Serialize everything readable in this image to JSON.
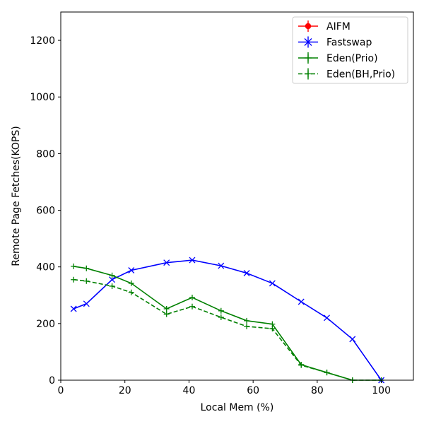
{
  "chart_data": {
    "type": "line",
    "xlabel": "Local Mem (%)",
    "ylabel": "Remote Page Fetches(KOPS)",
    "xlim": [
      0,
      110
    ],
    "ylim": [
      0,
      1300
    ],
    "xticks": [
      "0",
      "20",
      "40",
      "60",
      "80",
      "100"
    ],
    "yticks": [
      "0",
      "200",
      "400",
      "600",
      "800",
      "1000",
      "1200"
    ],
    "grid": false,
    "legend_position": "top-right",
    "series": [
      {
        "name": "AIFM",
        "color": "#ff0000",
        "marker": "circle",
        "linestyle": "solid",
        "x": [],
        "y": []
      },
      {
        "name": "Fastswap",
        "color": "#0000ff",
        "marker": "x",
        "linestyle": "solid",
        "x": [
          4,
          8,
          16,
          22,
          33,
          41,
          50,
          58,
          66,
          75,
          83,
          91,
          100
        ],
        "y": [
          252,
          270,
          355,
          388,
          415,
          424,
          404,
          378,
          342,
          277,
          220,
          145,
          0
        ]
      },
      {
        "name": "Eden(Prio)",
        "color": "#008000",
        "marker": "plus",
        "linestyle": "solid",
        "x": [
          4,
          8,
          16,
          22,
          33,
          41,
          50,
          58,
          66,
          75,
          83,
          91,
          100
        ],
        "y": [
          402,
          395,
          370,
          342,
          252,
          292,
          245,
          210,
          198,
          55,
          27,
          0,
          0
        ]
      },
      {
        "name": "Eden(BH,Prio)",
        "color": "#008000",
        "marker": "plus",
        "linestyle": "dashed",
        "x": [
          4,
          8,
          16,
          22,
          33,
          41,
          50,
          58,
          66,
          75,
          83,
          91,
          100
        ],
        "y": [
          355,
          350,
          332,
          310,
          233,
          260,
          222,
          190,
          182,
          53,
          27,
          0,
          0
        ]
      }
    ]
  }
}
